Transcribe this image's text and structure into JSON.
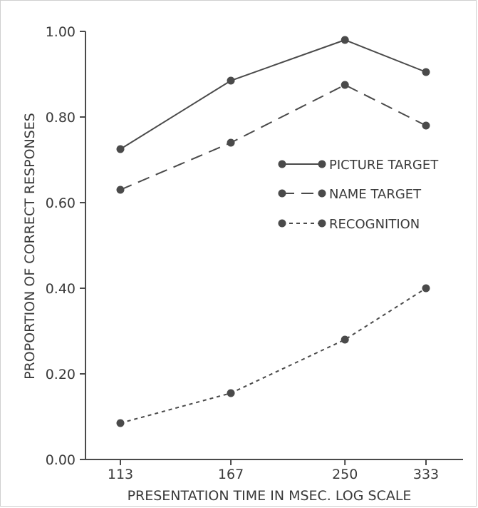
{
  "colors": {
    "ink": "#4a4a4a",
    "text": "#3a3a3a"
  },
  "chart_data": {
    "type": "line",
    "title": "",
    "xlabel": "PRESENTATION TIME IN MSEC.  LOG SCALE",
    "ylabel": "PROPORTION OF CORRECT RESPONSES",
    "x_scale": "log",
    "x": [
      113,
      167,
      250,
      333
    ],
    "x_tick_labels": [
      "113",
      "167",
      "250",
      "333"
    ],
    "y_ticks": [
      0.0,
      0.2,
      0.4,
      0.6,
      0.8,
      1.0
    ],
    "y_tick_labels": [
      "0.00",
      "0.20",
      "0.40",
      "0.60",
      "0.80",
      "1.00"
    ],
    "ylim": [
      0,
      1.0
    ],
    "grid": false,
    "legend_position": "right, upper middle",
    "series": [
      {
        "name": "PICTURE TARGET",
        "style": "solid",
        "values": [
          0.725,
          0.885,
          0.98,
          0.905
        ]
      },
      {
        "name": "NAME TARGET",
        "style": "dashed",
        "values": [
          0.63,
          0.74,
          0.875,
          0.78
        ]
      },
      {
        "name": "RECOGNITION",
        "style": "dotted",
        "values": [
          0.085,
          0.155,
          0.28,
          0.4
        ]
      }
    ]
  }
}
